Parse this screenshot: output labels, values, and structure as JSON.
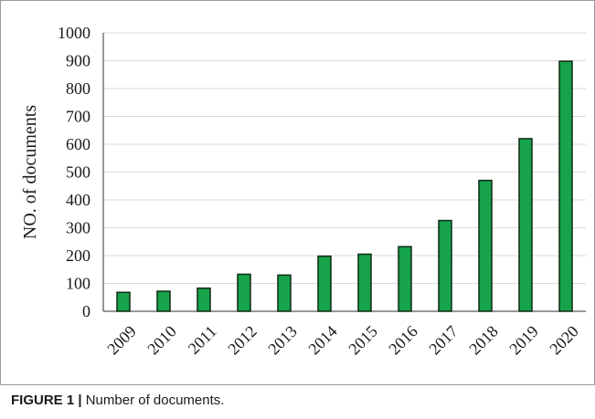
{
  "caption": {
    "label": "FIGURE 1 |",
    "text": " Number of documents."
  },
  "colors": {
    "bar_fill": "#16a34a",
    "bar_stroke": "#0f2a14",
    "grid": "#d9d9d9",
    "text": "#1a1a1a"
  },
  "chart_data": {
    "type": "bar",
    "ylabel": "NO. of documents",
    "ylim": [
      0,
      1000
    ],
    "yticks": [
      0,
      100,
      200,
      300,
      400,
      500,
      600,
      700,
      800,
      900,
      1000
    ],
    "grid": true,
    "categories": [
      "2009",
      "2010",
      "2011",
      "2012",
      "2013",
      "2014",
      "2015",
      "2016",
      "2017",
      "2018",
      "2019",
      "2020"
    ],
    "values": [
      68,
      72,
      83,
      133,
      130,
      198,
      205,
      232,
      326,
      470,
      620,
      898
    ]
  }
}
